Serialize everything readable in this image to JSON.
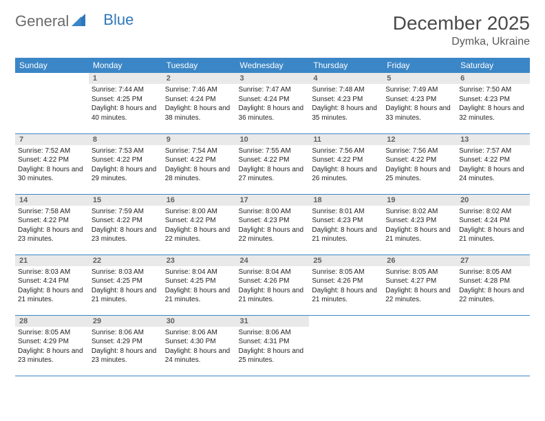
{
  "header": {
    "logo_general": "General",
    "logo_blue": "Blue",
    "month_title": "December 2025",
    "location": "Dymka, Ukraine"
  },
  "colors": {
    "header_bg": "#3b86c6",
    "header_text": "#ffffff",
    "daynum_bg": "#e9e9e9",
    "daynum_text": "#5f5f5f",
    "row_border": "#3b86c6",
    "logo_general": "#6a6a6a",
    "logo_blue": "#2f77bb",
    "title_color": "#4a4a4a"
  },
  "dow": [
    "Sunday",
    "Monday",
    "Tuesday",
    "Wednesday",
    "Thursday",
    "Friday",
    "Saturday"
  ],
  "weeks": [
    [
      null,
      {
        "n": "1",
        "sr": "Sunrise: 7:44 AM",
        "ss": "Sunset: 4:25 PM",
        "dl": "Daylight: 8 hours and 40 minutes."
      },
      {
        "n": "2",
        "sr": "Sunrise: 7:46 AM",
        "ss": "Sunset: 4:24 PM",
        "dl": "Daylight: 8 hours and 38 minutes."
      },
      {
        "n": "3",
        "sr": "Sunrise: 7:47 AM",
        "ss": "Sunset: 4:24 PM",
        "dl": "Daylight: 8 hours and 36 minutes."
      },
      {
        "n": "4",
        "sr": "Sunrise: 7:48 AM",
        "ss": "Sunset: 4:23 PM",
        "dl": "Daylight: 8 hours and 35 minutes."
      },
      {
        "n": "5",
        "sr": "Sunrise: 7:49 AM",
        "ss": "Sunset: 4:23 PM",
        "dl": "Daylight: 8 hours and 33 minutes."
      },
      {
        "n": "6",
        "sr": "Sunrise: 7:50 AM",
        "ss": "Sunset: 4:23 PM",
        "dl": "Daylight: 8 hours and 32 minutes."
      }
    ],
    [
      {
        "n": "7",
        "sr": "Sunrise: 7:52 AM",
        "ss": "Sunset: 4:22 PM",
        "dl": "Daylight: 8 hours and 30 minutes."
      },
      {
        "n": "8",
        "sr": "Sunrise: 7:53 AM",
        "ss": "Sunset: 4:22 PM",
        "dl": "Daylight: 8 hours and 29 minutes."
      },
      {
        "n": "9",
        "sr": "Sunrise: 7:54 AM",
        "ss": "Sunset: 4:22 PM",
        "dl": "Daylight: 8 hours and 28 minutes."
      },
      {
        "n": "10",
        "sr": "Sunrise: 7:55 AM",
        "ss": "Sunset: 4:22 PM",
        "dl": "Daylight: 8 hours and 27 minutes."
      },
      {
        "n": "11",
        "sr": "Sunrise: 7:56 AM",
        "ss": "Sunset: 4:22 PM",
        "dl": "Daylight: 8 hours and 26 minutes."
      },
      {
        "n": "12",
        "sr": "Sunrise: 7:56 AM",
        "ss": "Sunset: 4:22 PM",
        "dl": "Daylight: 8 hours and 25 minutes."
      },
      {
        "n": "13",
        "sr": "Sunrise: 7:57 AM",
        "ss": "Sunset: 4:22 PM",
        "dl": "Daylight: 8 hours and 24 minutes."
      }
    ],
    [
      {
        "n": "14",
        "sr": "Sunrise: 7:58 AM",
        "ss": "Sunset: 4:22 PM",
        "dl": "Daylight: 8 hours and 23 minutes."
      },
      {
        "n": "15",
        "sr": "Sunrise: 7:59 AM",
        "ss": "Sunset: 4:22 PM",
        "dl": "Daylight: 8 hours and 23 minutes."
      },
      {
        "n": "16",
        "sr": "Sunrise: 8:00 AM",
        "ss": "Sunset: 4:22 PM",
        "dl": "Daylight: 8 hours and 22 minutes."
      },
      {
        "n": "17",
        "sr": "Sunrise: 8:00 AM",
        "ss": "Sunset: 4:23 PM",
        "dl": "Daylight: 8 hours and 22 minutes."
      },
      {
        "n": "18",
        "sr": "Sunrise: 8:01 AM",
        "ss": "Sunset: 4:23 PM",
        "dl": "Daylight: 8 hours and 21 minutes."
      },
      {
        "n": "19",
        "sr": "Sunrise: 8:02 AM",
        "ss": "Sunset: 4:23 PM",
        "dl": "Daylight: 8 hours and 21 minutes."
      },
      {
        "n": "20",
        "sr": "Sunrise: 8:02 AM",
        "ss": "Sunset: 4:24 PM",
        "dl": "Daylight: 8 hours and 21 minutes."
      }
    ],
    [
      {
        "n": "21",
        "sr": "Sunrise: 8:03 AM",
        "ss": "Sunset: 4:24 PM",
        "dl": "Daylight: 8 hours and 21 minutes."
      },
      {
        "n": "22",
        "sr": "Sunrise: 8:03 AM",
        "ss": "Sunset: 4:25 PM",
        "dl": "Daylight: 8 hours and 21 minutes."
      },
      {
        "n": "23",
        "sr": "Sunrise: 8:04 AM",
        "ss": "Sunset: 4:25 PM",
        "dl": "Daylight: 8 hours and 21 minutes."
      },
      {
        "n": "24",
        "sr": "Sunrise: 8:04 AM",
        "ss": "Sunset: 4:26 PM",
        "dl": "Daylight: 8 hours and 21 minutes."
      },
      {
        "n": "25",
        "sr": "Sunrise: 8:05 AM",
        "ss": "Sunset: 4:26 PM",
        "dl": "Daylight: 8 hours and 21 minutes."
      },
      {
        "n": "26",
        "sr": "Sunrise: 8:05 AM",
        "ss": "Sunset: 4:27 PM",
        "dl": "Daylight: 8 hours and 22 minutes."
      },
      {
        "n": "27",
        "sr": "Sunrise: 8:05 AM",
        "ss": "Sunset: 4:28 PM",
        "dl": "Daylight: 8 hours and 22 minutes."
      }
    ],
    [
      {
        "n": "28",
        "sr": "Sunrise: 8:05 AM",
        "ss": "Sunset: 4:29 PM",
        "dl": "Daylight: 8 hours and 23 minutes."
      },
      {
        "n": "29",
        "sr": "Sunrise: 8:06 AM",
        "ss": "Sunset: 4:29 PM",
        "dl": "Daylight: 8 hours and 23 minutes."
      },
      {
        "n": "30",
        "sr": "Sunrise: 8:06 AM",
        "ss": "Sunset: 4:30 PM",
        "dl": "Daylight: 8 hours and 24 minutes."
      },
      {
        "n": "31",
        "sr": "Sunrise: 8:06 AM",
        "ss": "Sunset: 4:31 PM",
        "dl": "Daylight: 8 hours and 25 minutes."
      },
      null,
      null,
      null
    ]
  ]
}
